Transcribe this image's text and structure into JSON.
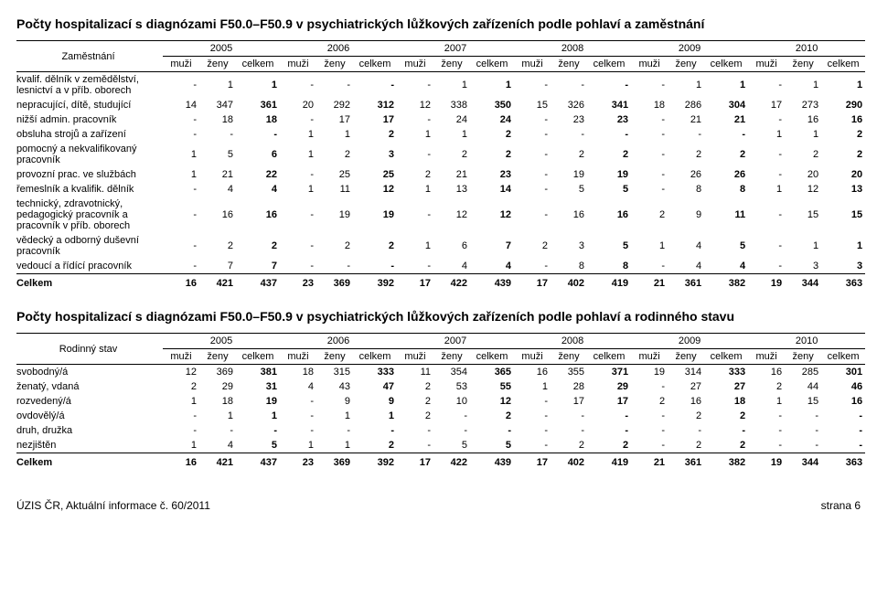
{
  "title1": "Počty hospitalizací s diagnózami F50.0–F50.9 v psychiatrických lůžkových zařízeních podle pohlaví a zaměstnání",
  "title2": "Počty hospitalizací s diagnózami F50.0–F50.9 v psychiatrických lůžkových zařízeních podle pohlaví a rodinného stavu",
  "header_label1": "Zaměstnání",
  "header_label2": "Rodinný stav",
  "years": [
    "2005",
    "2006",
    "2007",
    "2008",
    "2009",
    "2010"
  ],
  "subcols": [
    "muži",
    "ženy",
    "celkem"
  ],
  "table1_rows": [
    {
      "label": "kvalif. dělník v zemědělství, lesnictví a v příb. oborech",
      "vals": [
        "-",
        "1",
        "1",
        "-",
        "-",
        "-",
        "-",
        "1",
        "1",
        "-",
        "-",
        "-",
        "-",
        "1",
        "1",
        "-",
        "1",
        "1"
      ]
    },
    {
      "label": "nepracující, dítě, studující",
      "vals": [
        "14",
        "347",
        "361",
        "20",
        "292",
        "312",
        "12",
        "338",
        "350",
        "15",
        "326",
        "341",
        "18",
        "286",
        "304",
        "17",
        "273",
        "290"
      ]
    },
    {
      "label": "nižší admin. pracovník",
      "vals": [
        "-",
        "18",
        "18",
        "-",
        "17",
        "17",
        "-",
        "24",
        "24",
        "-",
        "23",
        "23",
        "-",
        "21",
        "21",
        "-",
        "16",
        "16"
      ]
    },
    {
      "label": "obsluha strojů a zařízení",
      "vals": [
        "-",
        "-",
        "-",
        "1",
        "1",
        "2",
        "1",
        "1",
        "2",
        "-",
        "-",
        "-",
        "-",
        "-",
        "-",
        "1",
        "1",
        "2"
      ]
    },
    {
      "label": "pomocný a nekvalifikovaný pracovník",
      "vals": [
        "1",
        "5",
        "6",
        "1",
        "2",
        "3",
        "-",
        "2",
        "2",
        "-",
        "2",
        "2",
        "-",
        "2",
        "2",
        "-",
        "2",
        "2"
      ]
    },
    {
      "label": "provozní prac. ve službách",
      "vals": [
        "1",
        "21",
        "22",
        "-",
        "25",
        "25",
        "2",
        "21",
        "23",
        "-",
        "19",
        "19",
        "-",
        "26",
        "26",
        "-",
        "20",
        "20"
      ]
    },
    {
      "label": "řemeslník a kvalifik. dělník",
      "vals": [
        "-",
        "4",
        "4",
        "1",
        "11",
        "12",
        "1",
        "13",
        "14",
        "-",
        "5",
        "5",
        "-",
        "8",
        "8",
        "1",
        "12",
        "13"
      ]
    },
    {
      "label": "technický, zdravotnický, pedagogický pracovník a pracovník v příb. oborech",
      "vals": [
        "-",
        "16",
        "16",
        "-",
        "19",
        "19",
        "-",
        "12",
        "12",
        "-",
        "16",
        "16",
        "2",
        "9",
        "11",
        "-",
        "15",
        "15"
      ]
    },
    {
      "label": "vědecký a odborný duševní pracovník",
      "vals": [
        "-",
        "2",
        "2",
        "-",
        "2",
        "2",
        "1",
        "6",
        "7",
        "2",
        "3",
        "5",
        "1",
        "4",
        "5",
        "-",
        "1",
        "1"
      ]
    },
    {
      "label": "vedoucí a řídící pracovník",
      "vals": [
        "-",
        "7",
        "7",
        "-",
        "-",
        "-",
        "-",
        "4",
        "4",
        "-",
        "8",
        "8",
        "-",
        "4",
        "4",
        "-",
        "3",
        "3"
      ]
    }
  ],
  "table1_total": {
    "label": "Celkem",
    "vals": [
      "16",
      "421",
      "437",
      "23",
      "369",
      "392",
      "17",
      "422",
      "439",
      "17",
      "402",
      "419",
      "21",
      "361",
      "382",
      "19",
      "344",
      "363"
    ]
  },
  "table2_rows": [
    {
      "label": "svobodný/á",
      "vals": [
        "12",
        "369",
        "381",
        "18",
        "315",
        "333",
        "11",
        "354",
        "365",
        "16",
        "355",
        "371",
        "19",
        "314",
        "333",
        "16",
        "285",
        "301"
      ]
    },
    {
      "label": "ženatý, vdaná",
      "vals": [
        "2",
        "29",
        "31",
        "4",
        "43",
        "47",
        "2",
        "53",
        "55",
        "1",
        "28",
        "29",
        "-",
        "27",
        "27",
        "2",
        "44",
        "46"
      ]
    },
    {
      "label": "rozvedený/á",
      "vals": [
        "1",
        "18",
        "19",
        "-",
        "9",
        "9",
        "2",
        "10",
        "12",
        "-",
        "17",
        "17",
        "2",
        "16",
        "18",
        "1",
        "15",
        "16"
      ]
    },
    {
      "label": "ovdovělý/á",
      "vals": [
        "-",
        "1",
        "1",
        "-",
        "1",
        "1",
        "2",
        "-",
        "2",
        "-",
        "-",
        "-",
        "-",
        "2",
        "2",
        "-",
        "-",
        "-"
      ]
    },
    {
      "label": "druh, družka",
      "vals": [
        "-",
        "-",
        "-",
        "-",
        "-",
        "-",
        "-",
        "-",
        "-",
        "-",
        "-",
        "-",
        "-",
        "-",
        "-",
        "-",
        "-",
        "-"
      ]
    },
    {
      "label": "nezjištěn",
      "vals": [
        "1",
        "4",
        "5",
        "1",
        "1",
        "2",
        "-",
        "5",
        "5",
        "-",
        "2",
        "2",
        "-",
        "2",
        "2",
        "-",
        "-",
        "-"
      ]
    }
  ],
  "table2_total": {
    "label": "Celkem",
    "vals": [
      "16",
      "421",
      "437",
      "23",
      "369",
      "392",
      "17",
      "422",
      "439",
      "17",
      "402",
      "419",
      "21",
      "361",
      "382",
      "19",
      "344",
      "363"
    ]
  },
  "footer_left": "ÚZIS ČR, Aktuální informace č. 60/2011",
  "footer_right": "strana 6"
}
